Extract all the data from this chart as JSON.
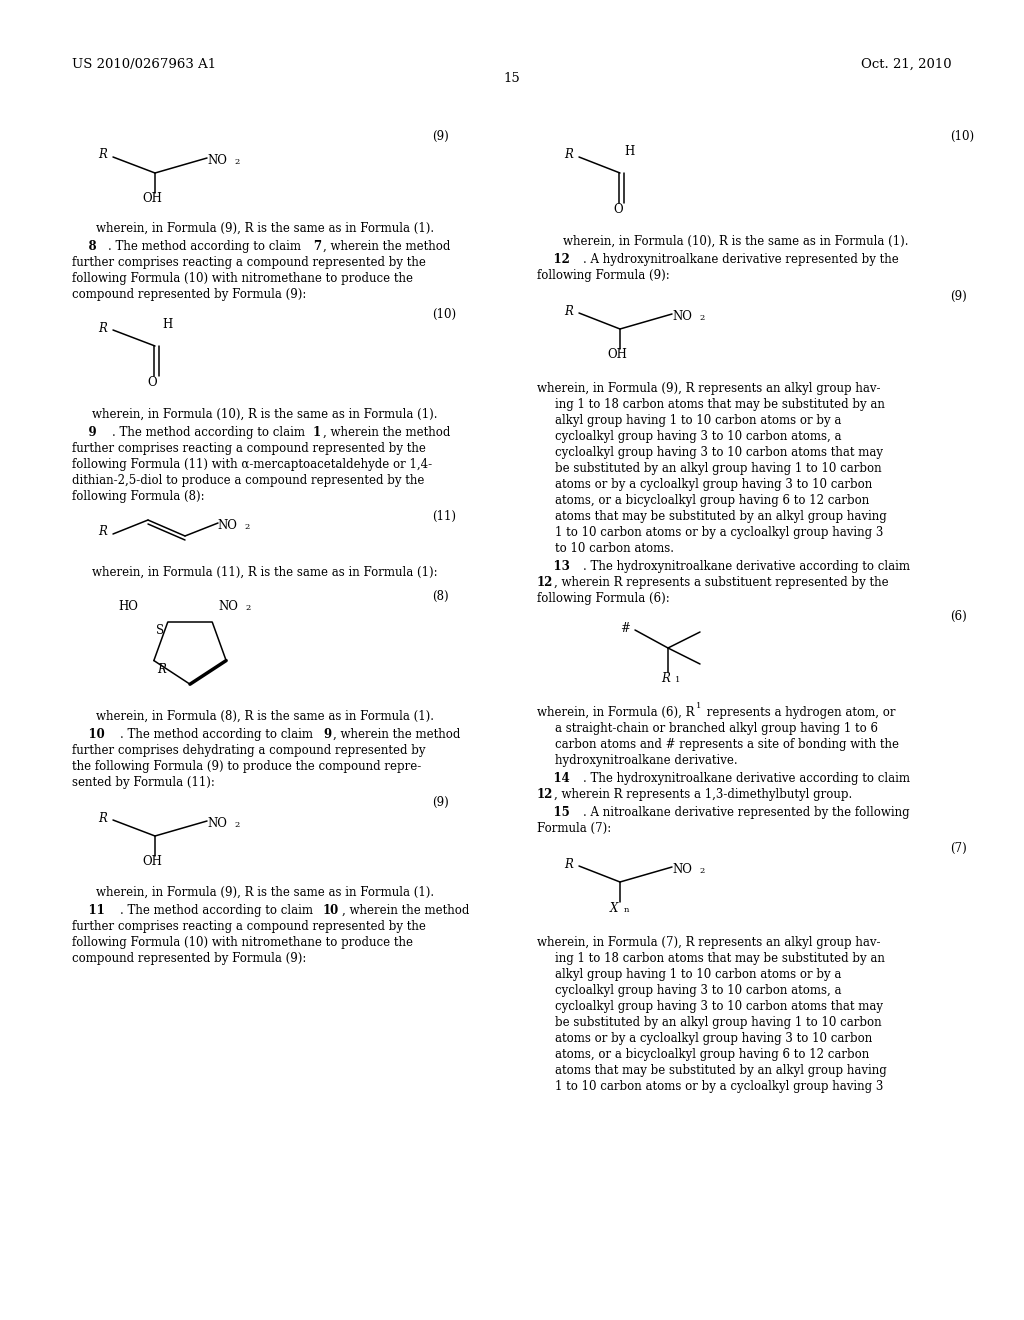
{
  "page_number": "15",
  "header_left": "US 2010/0267963 A1",
  "header_right": "Oct. 21, 2010",
  "bg": "#ffffff",
  "lw": 1.1,
  "fs": 8.5,
  "fs_small": 6.0,
  "fs_header": 9.5,
  "fs_label": 8.5
}
